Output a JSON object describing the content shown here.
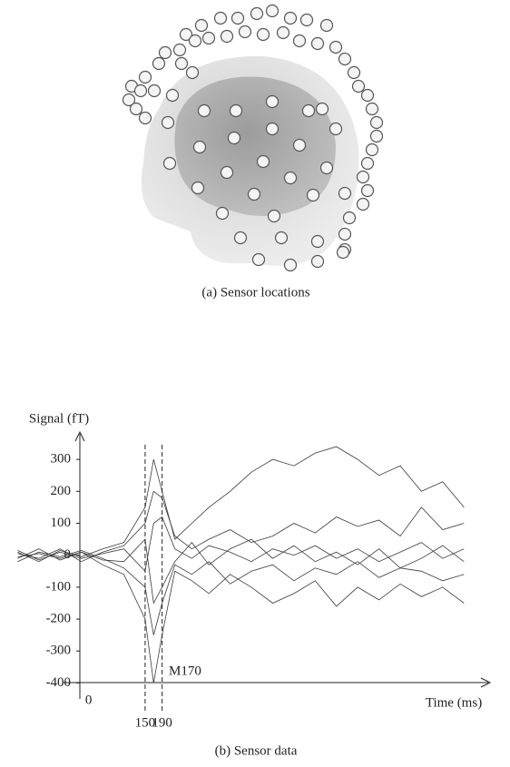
{
  "figure_a": {
    "caption": "(a) Sensor locations"
  },
  "chart_data": {
    "type": "line",
    "caption": "(b) Sensor data",
    "ylabel": "Signal (fT)",
    "xlabel": "Time (ms)",
    "annotation": "M170",
    "x": [
      -150,
      -100,
      -50,
      0,
      50,
      100,
      150,
      170,
      190,
      220,
      260,
      300,
      350,
      400,
      450,
      500,
      550,
      600,
      650,
      700,
      750,
      800,
      850,
      900
    ],
    "series": [
      {
        "color": "#3a3a3a",
        "values": [
          10,
          -20,
          15,
          -5,
          20,
          40,
          150,
          300,
          200,
          50,
          100,
          150,
          200,
          260,
          300,
          280,
          320,
          340,
          300,
          250,
          280,
          200,
          230,
          150
        ]
      },
      {
        "color": "#3a3a3a",
        "values": [
          -10,
          20,
          -15,
          10,
          -30,
          -60,
          -200,
          -400,
          -250,
          -50,
          -80,
          -120,
          -60,
          -100,
          -150,
          -120,
          -80,
          -160,
          -100,
          -140,
          -90,
          -130,
          -100,
          -150
        ]
      },
      {
        "color": "#3a3a3a",
        "values": [
          5,
          -10,
          20,
          -20,
          10,
          30,
          100,
          200,
          180,
          60,
          20,
          50,
          80,
          40,
          60,
          100,
          70,
          120,
          90,
          110,
          60,
          150,
          80,
          100
        ]
      },
      {
        "color": "#3a3a3a",
        "values": [
          -20,
          10,
          -5,
          15,
          -10,
          -40,
          -100,
          -250,
          -150,
          -30,
          -60,
          -20,
          -90,
          -50,
          -30,
          -80,
          -40,
          -60,
          -20,
          -70,
          -40,
          -50,
          -80,
          -60
        ]
      },
      {
        "color": "#3a3a3a",
        "values": [
          15,
          -15,
          10,
          -10,
          5,
          20,
          -50,
          100,
          120,
          20,
          -10,
          30,
          10,
          -20,
          20,
          0,
          30,
          -10,
          20,
          -20,
          10,
          40,
          -10,
          20
        ]
      },
      {
        "color": "#3a3a3a",
        "values": [
          -5,
          5,
          -10,
          10,
          -15,
          -20,
          50,
          -150,
          -100,
          -20,
          40,
          -30,
          20,
          50,
          -10,
          30,
          -20,
          10,
          -30,
          20,
          -40,
          -10,
          30,
          -20
        ]
      }
    ],
    "xlim": [
      -170,
      940
    ],
    "ylim": [
      -450,
      380
    ],
    "xticks": [
      0,
      150,
      190
    ],
    "yticks": [
      300,
      200,
      100,
      0,
      -100,
      -200,
      -300,
      -400
    ]
  }
}
